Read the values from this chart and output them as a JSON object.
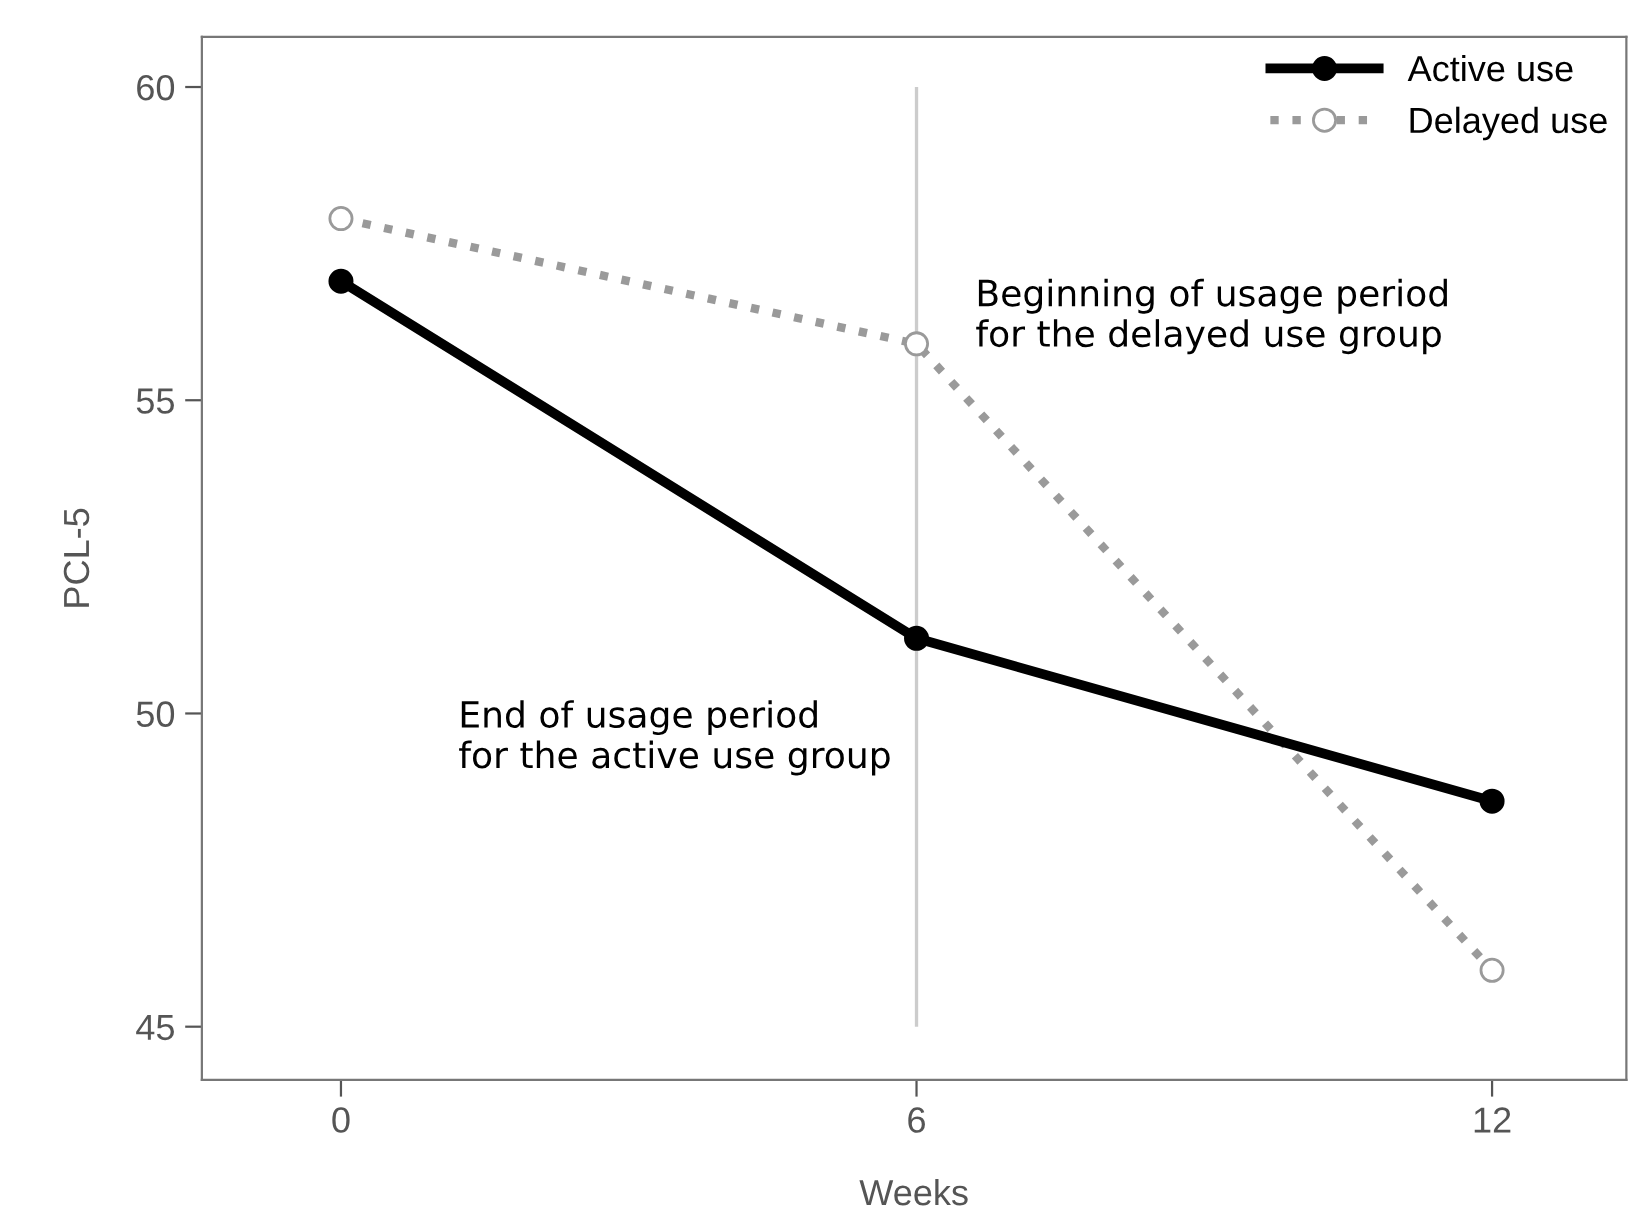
{
  "chart_data": {
    "type": "line",
    "xlabel": "Weeks",
    "ylabel": "PCL-5",
    "x": [
      0,
      6,
      12
    ],
    "series": [
      {
        "name": "Active use",
        "color": "#000000",
        "values": [
          56.9,
          51.2,
          48.6
        ],
        "marker": "circle",
        "line_style": "solid"
      },
      {
        "name": "Delayed use",
        "color": "#9a9a9a",
        "values": [
          57.9,
          55.9,
          45.9
        ],
        "marker": "circle",
        "line_style": "dotted"
      }
    ],
    "xlim": [
      -1.45,
      13.4
    ],
    "ylim": [
      44.15,
      60.8
    ],
    "xticks": [
      0,
      6,
      12
    ],
    "yticks": [
      45,
      50,
      55,
      60
    ],
    "ref_lines": [
      {
        "axis": "x",
        "value": 6,
        "color": "#cccccc"
      }
    ],
    "annotations": [
      "Beginning of usage period\nfor the delayed use group",
      "End of usage period\nfor the active use group"
    ],
    "grid": false,
    "legend": "top right"
  }
}
